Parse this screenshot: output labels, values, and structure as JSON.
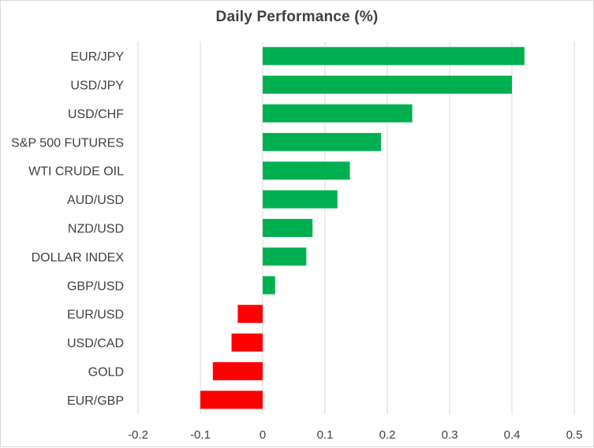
{
  "chart_data": {
    "type": "bar",
    "orientation": "horizontal",
    "title": "Daily Performance  (%)",
    "xlabel": "",
    "ylabel": "",
    "xlim": [
      -0.2,
      0.5
    ],
    "x_ticks": [
      -0.2,
      -0.1,
      0,
      0.1,
      0.2,
      0.3,
      0.4,
      0.5
    ],
    "x_tick_labels": [
      "-0.2",
      "-0.1",
      "0",
      "0.1",
      "0.2",
      "0.3",
      "0.4",
      "0.5"
    ],
    "grid": true,
    "legend": "none",
    "colors": {
      "positive": "#00b050",
      "negative": "#ff0000",
      "grid": "#d9d9d9",
      "text": "#404040"
    },
    "categories": [
      "EUR/JPY",
      "USD/JPY",
      "USD/CHF",
      "S&P 500 FUTURES",
      "WTI CRUDE OIL",
      "AUD/USD",
      "NZD/USD",
      "DOLLAR INDEX",
      "GBP/USD",
      "EUR/USD",
      "USD/CAD",
      "GOLD",
      "EUR/GBP"
    ],
    "values": [
      0.42,
      0.4,
      0.24,
      0.19,
      0.14,
      0.12,
      0.08,
      0.07,
      0.02,
      -0.04,
      -0.05,
      -0.08,
      -0.1
    ]
  }
}
